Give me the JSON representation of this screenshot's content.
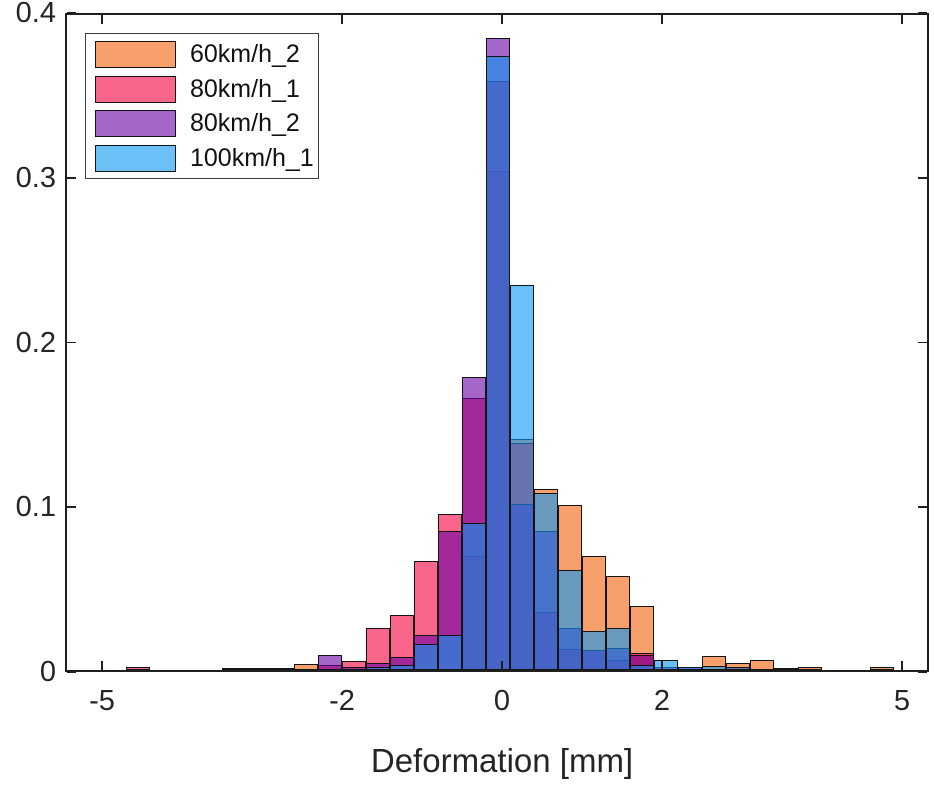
{
  "figure": {
    "background": "#ffffff",
    "axis_color": "#1f1f1f"
  },
  "chart_data": {
    "type": "bar",
    "subtype": "overlaid-histograms",
    "title": "",
    "xlabel": "Deformation [mm]",
    "ylabel": "",
    "xlim": [
      -5.4625,
      5.3375
    ],
    "ylim": [
      0,
      0.4
    ],
    "x_ticks": [
      -5,
      -2,
      0,
      2,
      5
    ],
    "x_tick_labels": [
      "-5",
      "-2",
      "0",
      "2",
      "5"
    ],
    "y_ticks": [
      0,
      0.1,
      0.2,
      0.3,
      0.4
    ],
    "y_tick_labels": [
      "0",
      "0.1",
      "0.2",
      "0.3",
      "0.4"
    ],
    "bin_width": 0.3,
    "grid": false,
    "legend_position": "top-left",
    "face_alpha": 0.6,
    "series": [
      {
        "name": "60km/h_2",
        "color": "rgba(243,97,10,0.6)",
        "color_hex": "#F8A06C",
        "bins": [
          [
            -3.35,
            0.0015
          ],
          [
            -2.45,
            0.0036
          ],
          [
            -0.35,
            0.069
          ],
          [
            -0.05,
            0.303
          ],
          [
            0.25,
            0.14
          ],
          [
            0.55,
            0.11
          ],
          [
            0.85,
            0.1
          ],
          [
            1.15,
            0.069
          ],
          [
            1.45,
            0.057
          ],
          [
            1.75,
            0.039
          ],
          [
            2.65,
            0.0083
          ],
          [
            2.95,
            0.004
          ],
          [
            3.25,
            0.0062
          ],
          [
            3.85,
            0.0016
          ],
          [
            4.75,
            0.0016
          ]
        ]
      },
      {
        "name": "80km/h_1",
        "color": "rgba(245,0,60,0.6)",
        "color_hex": "#F9668A",
        "bins": [
          [
            -4.55,
            0.0018
          ],
          [
            -3.05,
            0.0015
          ],
          [
            -2.15,
            0.0028
          ],
          [
            -1.85,
            0.0056
          ],
          [
            -1.55,
            0.0255
          ],
          [
            -1.25,
            0.0332
          ],
          [
            -0.95,
            0.0663
          ],
          [
            -0.65,
            0.0947
          ],
          [
            -0.35,
            0.165
          ],
          [
            -0.05,
            0.3575
          ],
          [
            0.25,
            0.138
          ],
          [
            0.55,
            0.035
          ],
          [
            0.85,
            0.013
          ],
          [
            1.15,
            0.012
          ],
          [
            1.45,
            0.006
          ],
          [
            1.75,
            0.0103
          ],
          [
            2.95,
            0.002
          ]
        ]
      },
      {
        "name": "80km/h_2",
        "color": "rgba(105,0,165,0.6)",
        "color_hex": "#A566C9",
        "bins": [
          [
            -2.15,
            0.0089
          ],
          [
            -1.85,
            0.002
          ],
          [
            -1.55,
            0.0042
          ],
          [
            -1.25,
            0.0077
          ],
          [
            -0.95,
            0.0211
          ],
          [
            -0.65,
            0.0842
          ],
          [
            -0.35,
            0.178
          ],
          [
            -0.05,
            0.3836
          ],
          [
            0.25,
            0.101
          ],
          [
            0.55,
            0.0846
          ],
          [
            0.85,
            0.0255
          ],
          [
            1.15,
            0.012
          ],
          [
            1.45,
            0.0134
          ],
          [
            1.75,
            0.009
          ],
          [
            2.05,
            0.002
          ],
          [
            2.35,
            0.002
          ],
          [
            3.55,
            0.0012
          ]
        ]
      },
      {
        "name": "100km/h_1",
        "color": "rgba(10,150,243,0.6)",
        "color_hex": "#6CC0F8",
        "bins": [
          [
            -2.75,
            0.0015
          ],
          [
            -1.55,
            0.002
          ],
          [
            -1.25,
            0.003
          ],
          [
            -0.95,
            0.0158
          ],
          [
            -0.65,
            0.0214
          ],
          [
            -0.35,
            0.0892
          ],
          [
            -0.05,
            0.3727
          ],
          [
            0.25,
            0.234
          ],
          [
            0.55,
            0.1074
          ],
          [
            0.85,
            0.061
          ],
          [
            1.15,
            0.0235
          ],
          [
            1.45,
            0.0255
          ],
          [
            1.75,
            0.003
          ],
          [
            2.05,
            0.0063
          ],
          [
            2.35,
            0.002
          ],
          [
            2.65,
            0.0025
          ],
          [
            2.95,
            0.002
          ]
        ]
      }
    ]
  }
}
